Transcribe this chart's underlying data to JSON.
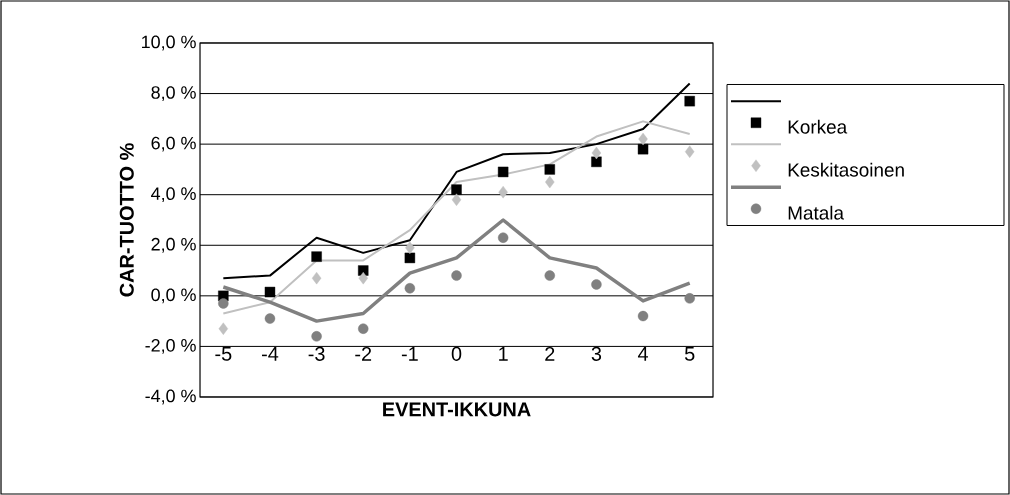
{
  "chart_data": {
    "type": "line",
    "xlabel": "EVENT-IKKUNA",
    "ylabel": "CAR-TUOTTO %",
    "categories": [
      "-5",
      "-4",
      "-3",
      "-2",
      "-1",
      "0",
      "1",
      "2",
      "3",
      "4",
      "5"
    ],
    "series": [
      {
        "type": "line",
        "color": "#000000",
        "values": [
          0.7,
          0.8,
          2.3,
          1.7,
          2.2,
          4.9,
          5.6,
          5.65,
          6.0,
          6.6,
          8.4
        ]
      },
      {
        "type": "scatter",
        "name": "Korkea",
        "color": "#000000",
        "marker": "square",
        "values": [
          0.0,
          0.15,
          1.55,
          1.0,
          1.5,
          4.2,
          4.9,
          5.0,
          5.3,
          5.8,
          7.7
        ]
      },
      {
        "type": "line",
        "color": "#c0c0c0",
        "values": [
          -0.7,
          -0.25,
          1.4,
          1.4,
          2.6,
          4.5,
          4.8,
          5.2,
          6.3,
          6.9,
          6.4
        ]
      },
      {
        "type": "scatter",
        "name": "Keskitasoinen",
        "color": "#c0c0c0",
        "marker": "diamond",
        "values": [
          -1.3,
          null,
          0.7,
          0.7,
          1.9,
          3.8,
          4.1,
          4.5,
          5.65,
          6.2,
          5.7
        ]
      },
      {
        "type": "line",
        "color": "#808080",
        "values": [
          0.35,
          -0.25,
          -1.0,
          -0.7,
          0.9,
          1.5,
          3.0,
          1.5,
          1.1,
          -0.2,
          0.5
        ]
      },
      {
        "type": "scatter",
        "name": "Matala",
        "color": "#808080",
        "marker": "circle",
        "values": [
          -0.3,
          -0.9,
          -1.6,
          -1.3,
          0.3,
          0.8,
          2.3,
          0.8,
          0.45,
          -0.8,
          -0.1
        ]
      }
    ],
    "ylim": [
      -4,
      10
    ],
    "yticks": [
      {
        "value": -4,
        "label": "-4,0 %"
      },
      {
        "value": -2,
        "label": "-2,0 %"
      },
      {
        "value": 0,
        "label": "0,0 %"
      },
      {
        "value": 2,
        "label": "2,0 %"
      },
      {
        "value": 4,
        "label": "4,0 %"
      },
      {
        "value": 6,
        "label": "6,0 %"
      },
      {
        "value": 8,
        "label": "8,0 %"
      },
      {
        "value": 10,
        "label": "10,0 %"
      }
    ],
    "grid": "y",
    "legend": "right"
  }
}
